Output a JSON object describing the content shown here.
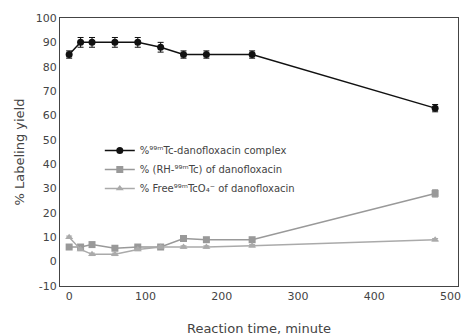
{
  "chart_data": {
    "type": "line",
    "xlabel": "Reaction time, minute",
    "ylabel": "% Labeling yield",
    "xlim": [
      -12,
      510
    ],
    "ylim": [
      -10,
      100
    ],
    "xticks": [
      0,
      100,
      200,
      300,
      400,
      500
    ],
    "yticks": [
      -10,
      0,
      10,
      20,
      30,
      40,
      50,
      60,
      70,
      80,
      90,
      100
    ],
    "grid": false,
    "legend": "center left",
    "series": [
      {
        "name": "%⁹⁹ᵐTc-danofloxacin complex",
        "color": "#111111",
        "marker": "circle",
        "line_style": "solid",
        "x": [
          0,
          15,
          30,
          60,
          90,
          120,
          150,
          180,
          240,
          480
        ],
        "values": [
          85,
          90,
          90,
          90,
          90,
          88,
          85,
          85,
          85,
          63
        ],
        "errors": [
          1.5,
          2.0,
          2.0,
          2.0,
          2.0,
          2.0,
          1.5,
          1.5,
          1.5,
          1.5
        ]
      },
      {
        "name": "% (RH-⁹⁹ᵐTc) of danofloxacin",
        "color": "#999999",
        "marker": "square",
        "line_style": "solid",
        "x": [
          0,
          15,
          30,
          60,
          90,
          120,
          150,
          180,
          240,
          480
        ],
        "values": [
          6,
          6,
          7,
          5.5,
          6,
          6,
          9.5,
          9,
          9,
          28
        ],
        "errors": [
          0.5,
          0.5,
          0.5,
          0.5,
          0.5,
          0.5,
          0.5,
          0.5,
          0.5,
          1.5
        ]
      },
      {
        "name": "% Free⁹⁹ᵐTcO₄⁻ of danofloxacin",
        "color": "#aaaaaa",
        "marker": "triangle-up",
        "line_style": "solid",
        "x": [
          0,
          15,
          30,
          60,
          90,
          120,
          150,
          180,
          240,
          480
        ],
        "values": [
          10,
          5,
          3,
          3,
          5,
          6,
          6,
          6,
          6.5,
          9
        ],
        "errors": [
          0.5,
          0.5,
          0.5,
          0.5,
          0.5,
          0.5,
          0.5,
          0.5,
          0.5,
          0.5
        ]
      }
    ]
  }
}
